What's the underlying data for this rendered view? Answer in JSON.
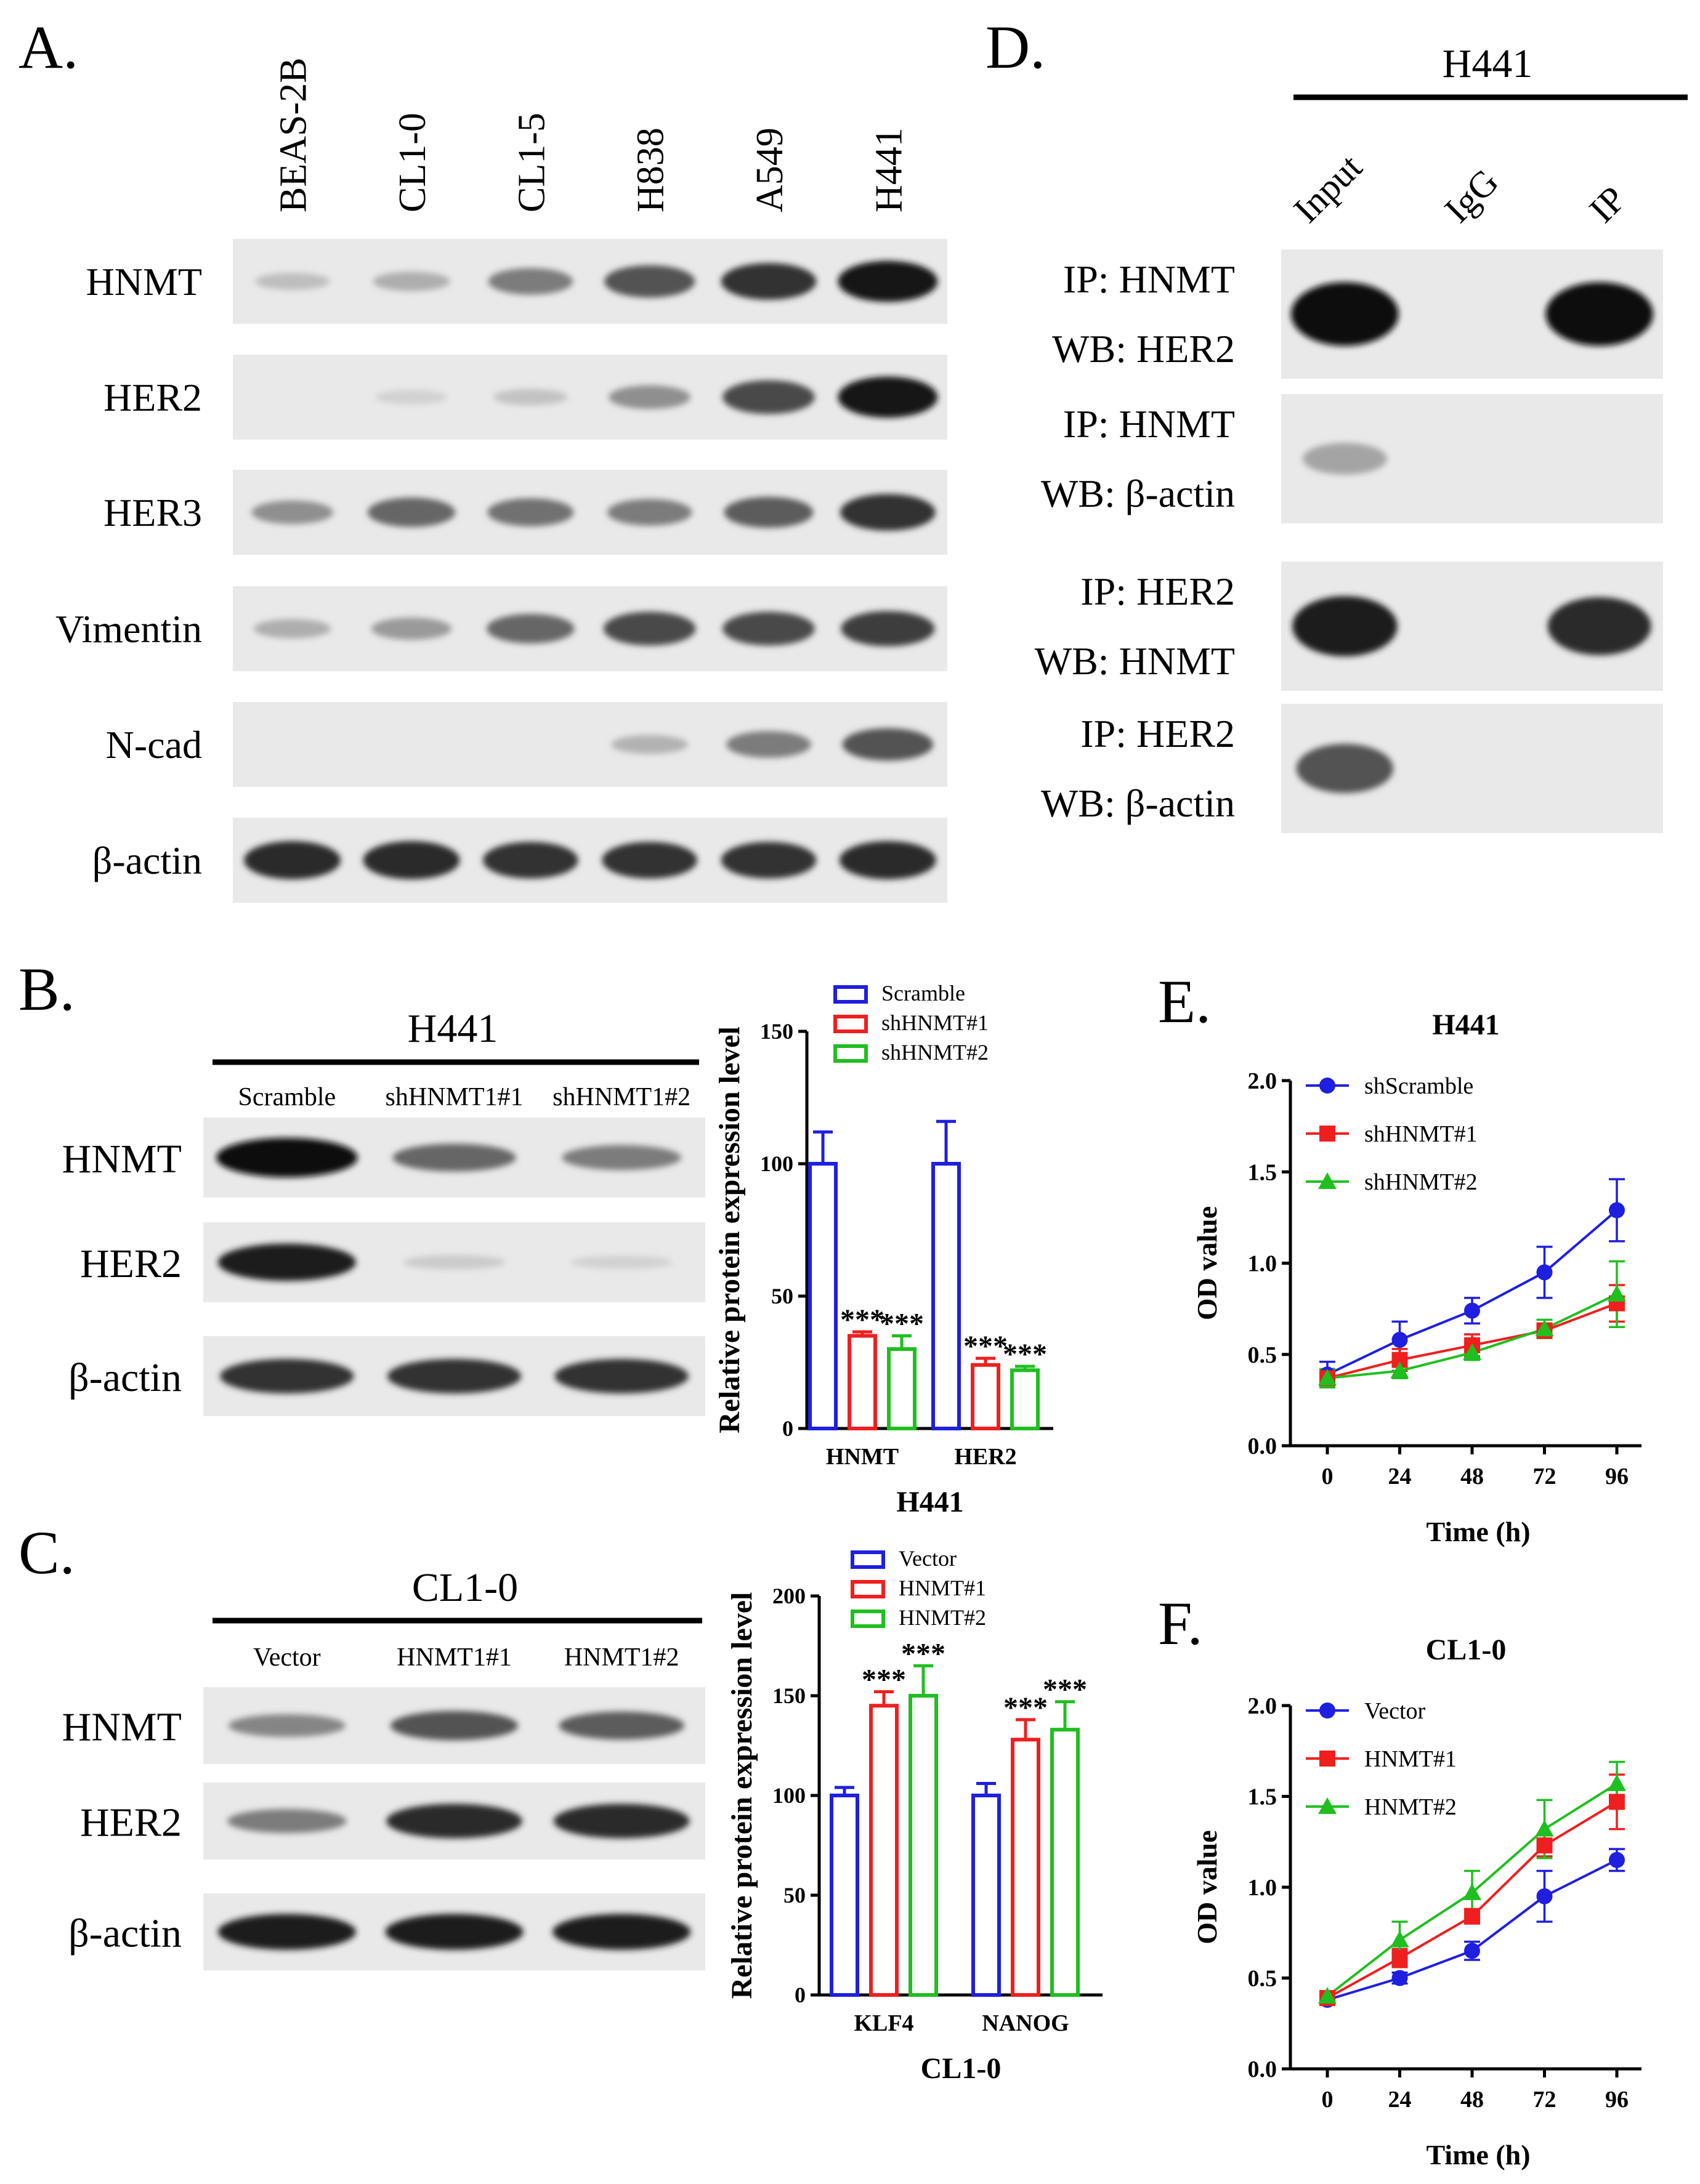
{
  "panelA": {
    "letter": "A.",
    "lanes": [
      "BEAS-2B",
      "CL1-0",
      "CL1-5",
      "H838",
      "A549",
      "H441"
    ],
    "rows": [
      {
        "label": "HNMT",
        "intensity": [
          0.12,
          0.2,
          0.45,
          0.65,
          0.8,
          0.95
        ]
      },
      {
        "label": "HER2",
        "intensity": [
          0.0,
          0.03,
          0.1,
          0.35,
          0.7,
          0.95
        ]
      },
      {
        "label": "HER3",
        "intensity": [
          0.35,
          0.55,
          0.5,
          0.45,
          0.6,
          0.8
        ]
      },
      {
        "label": "Vimentin",
        "intensity": [
          0.2,
          0.3,
          0.55,
          0.7,
          0.7,
          0.75
        ]
      },
      {
        "label": "N-cad",
        "intensity": [
          0.0,
          0.0,
          0.0,
          0.18,
          0.45,
          0.65
        ]
      },
      {
        "label": "β-actin",
        "intensity": [
          0.85,
          0.85,
          0.8,
          0.8,
          0.8,
          0.85
        ]
      }
    ]
  },
  "panelB": {
    "letter": "B.",
    "cell_line": "H441",
    "lanes": [
      "Scramble",
      "shHNMT1#1",
      "shHNMT1#2"
    ],
    "rows": [
      {
        "label": "HNMT",
        "intensity": [
          0.98,
          0.55,
          0.45
        ]
      },
      {
        "label": "HER2",
        "intensity": [
          0.9,
          0.06,
          0.03
        ]
      },
      {
        "label": "β-actin",
        "intensity": [
          0.8,
          0.8,
          0.8
        ]
      }
    ]
  },
  "panelC": {
    "letter": "C.",
    "cell_line": "CL1-0",
    "lanes": [
      "Vector",
      "HNMT1#1",
      "HNMT1#2"
    ],
    "rows": [
      {
        "label": "HNMT",
        "intensity": [
          0.4,
          0.65,
          0.6
        ]
      },
      {
        "label": "HER2",
        "intensity": [
          0.45,
          0.85,
          0.85
        ]
      },
      {
        "label": "β-actin",
        "intensity": [
          0.9,
          0.9,
          0.9
        ]
      }
    ]
  },
  "panelD": {
    "letter": "D.",
    "cell_line": "H441",
    "lanes": [
      "Input",
      "IgG",
      "IP"
    ],
    "rows": [
      {
        "label_ip": "IP: HNMT",
        "label_wb": "WB: HER2",
        "intensity": [
          0.98,
          0.0,
          0.98
        ]
      },
      {
        "label_ip": "IP: HNMT",
        "label_wb": "WB: β-actin",
        "intensity": [
          0.25,
          0.0,
          0.0
        ]
      },
      {
        "label_ip": "IP: HER2",
        "label_wb": "WB: HNMT",
        "intensity": [
          0.9,
          0.0,
          0.85
        ]
      },
      {
        "label_ip": "IP: HER2",
        "label_wb": "WB: β-actin",
        "intensity": [
          0.65,
          0.0,
          0.0
        ]
      }
    ]
  },
  "panelE": {
    "letter": "E."
  },
  "panelF": {
    "letter": "F."
  },
  "chart_data": [
    {
      "id": "barB",
      "type": "bar",
      "title": "",
      "xlabel": "H441",
      "ylabel": "Relative protein expression level",
      "categories": [
        "HNMT",
        "HER2"
      ],
      "ylim": [
        0,
        150
      ],
      "yticks": [
        0,
        50,
        100,
        150
      ],
      "series": [
        {
          "name": "Scramble",
          "color": "#1f1fe0",
          "values": [
            100,
            100
          ],
          "errors": [
            12,
            16
          ],
          "sig": [
            "",
            ""
          ]
        },
        {
          "name": "shHNMT#1",
          "color": "#ef1f1f",
          "values": [
            35,
            24
          ],
          "errors": [
            1.5,
            2.5
          ],
          "sig": [
            "***",
            "***"
          ]
        },
        {
          "name": "shHNMT#2",
          "color": "#1fbf1f",
          "values": [
            30,
            22
          ],
          "errors": [
            5,
            1.5
          ],
          "sig": [
            "***",
            "***"
          ]
        }
      ],
      "legend": "top-right"
    },
    {
      "id": "barC",
      "type": "bar",
      "title": "",
      "xlabel": "CL1-0",
      "ylabel": "Relative protein expression level",
      "categories": [
        "KLF4",
        "NANOG"
      ],
      "ylim": [
        0,
        200
      ],
      "yticks": [
        0,
        50,
        100,
        150,
        200
      ],
      "series": [
        {
          "name": "Vector",
          "color": "#1f1fe0",
          "values": [
            100,
            100
          ],
          "errors": [
            4,
            6
          ],
          "sig": [
            "",
            ""
          ]
        },
        {
          "name": "HNMT#1",
          "color": "#ef1f1f",
          "values": [
            145,
            128
          ],
          "errors": [
            7,
            10
          ],
          "sig": [
            "***",
            "***"
          ]
        },
        {
          "name": "HNMT#2",
          "color": "#1fbf1f",
          "values": [
            150,
            133
          ],
          "errors": [
            15,
            14
          ],
          "sig": [
            "***",
            "***"
          ]
        }
      ],
      "legend": "top-right"
    },
    {
      "id": "lineE",
      "type": "line",
      "title": "H441",
      "xlabel": "Time (h)",
      "ylabel": "OD value",
      "x": [
        0,
        24,
        48,
        72,
        96
      ],
      "ylim": [
        0,
        2.0
      ],
      "yticks": [
        "0.0",
        "0.5",
        "1.0",
        "1.5",
        "2.0"
      ],
      "series": [
        {
          "name": "shScramble",
          "color": "#1f1fe0",
          "marker": "circle",
          "values": [
            0.39,
            0.58,
            0.74,
            0.95,
            1.29
          ],
          "errors": [
            0.07,
            0.1,
            0.07,
            0.14,
            0.17
          ]
        },
        {
          "name": "shHNMT#1",
          "color": "#ef1f1f",
          "marker": "square",
          "values": [
            0.37,
            0.47,
            0.55,
            0.63,
            0.78
          ],
          "errors": [
            0.05,
            0.06,
            0.06,
            0.04,
            0.1
          ]
        },
        {
          "name": "shHNMT#2",
          "color": "#1fbf1f",
          "marker": "triangle",
          "values": [
            0.37,
            0.41,
            0.51,
            0.64,
            0.83
          ],
          "errors": [
            0.05,
            0.04,
            0.04,
            0.05,
            0.18
          ]
        }
      ],
      "legend": "top-left"
    },
    {
      "id": "lineF",
      "type": "line",
      "title": "CL1-0",
      "xlabel": "Time (h)",
      "ylabel": "OD value",
      "x": [
        0,
        24,
        48,
        72,
        96
      ],
      "ylim": [
        0,
        2.0
      ],
      "yticks": [
        "0.0",
        "0.5",
        "1.0",
        "1.5",
        "2.0"
      ],
      "series": [
        {
          "name": "Vector",
          "color": "#1f1fe0",
          "marker": "circle",
          "values": [
            0.38,
            0.5,
            0.65,
            0.95,
            1.15
          ],
          "errors": [
            0.02,
            0.03,
            0.05,
            0.14,
            0.06
          ]
        },
        {
          "name": "HNMT#1",
          "color": "#ef1f1f",
          "marker": "square",
          "values": [
            0.39,
            0.61,
            0.84,
            1.23,
            1.47
          ],
          "errors": [
            0.02,
            0.05,
            0.04,
            0.06,
            0.15
          ]
        },
        {
          "name": "HNMT#2",
          "color": "#1fbf1f",
          "marker": "triangle",
          "values": [
            0.4,
            0.71,
            0.97,
            1.32,
            1.57
          ],
          "errors": [
            0.02,
            0.1,
            0.12,
            0.16,
            0.12
          ]
        }
      ],
      "legend": "top-left"
    }
  ]
}
